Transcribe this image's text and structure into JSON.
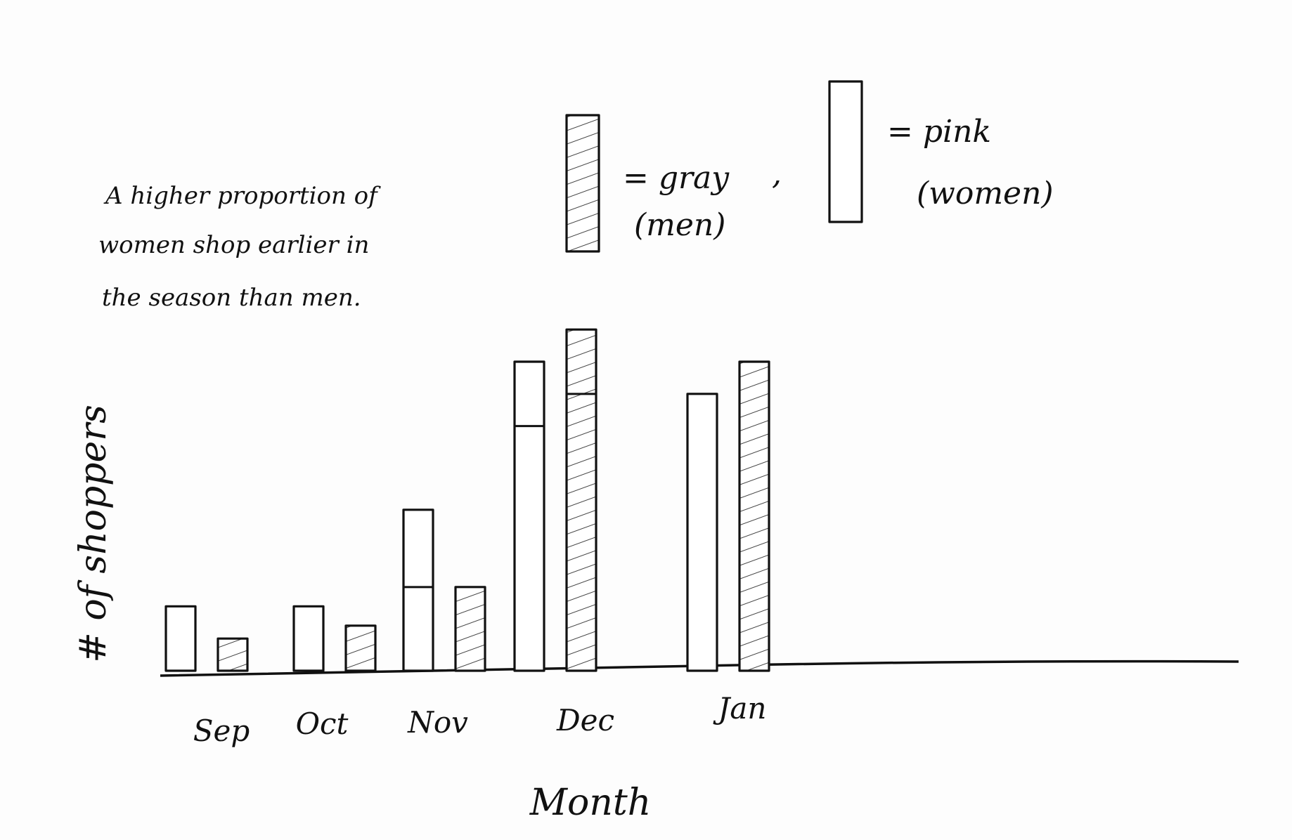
{
  "chart_data": {
    "type": "bar",
    "annotation": [
      "A higher proportion of",
      "women shop earlier in",
      "the season than men."
    ],
    "xlabel": "Month",
    "ylabel": "# of shoppers",
    "categories": [
      "Sep",
      "Oct",
      "Nov",
      "Dec",
      "Jan"
    ],
    "legend": [
      {
        "key": "gray",
        "label": "= gray",
        "sublabel": "(men)",
        "color": "#8a8a8a"
      },
      {
        "key": "pink",
        "label": "= pink",
        "sublabel": "(women)",
        "color": "#ffffff"
      }
    ],
    "series": [
      {
        "name": "(women)",
        "color": "pink",
        "values": [
          1.0,
          1.0,
          2.5,
          4.8,
          4.3
        ],
        "split": [
          null,
          null,
          1.3,
          3.8,
          null
        ]
      },
      {
        "name": "(men)",
        "color": "gray",
        "values": [
          0.5,
          0.7,
          1.3,
          5.3,
          4.8
        ],
        "split": [
          null,
          null,
          null,
          4.3,
          null
        ]
      }
    ],
    "ylim": [
      0,
      6
    ],
    "grid": false,
    "legend_position": "top"
  }
}
